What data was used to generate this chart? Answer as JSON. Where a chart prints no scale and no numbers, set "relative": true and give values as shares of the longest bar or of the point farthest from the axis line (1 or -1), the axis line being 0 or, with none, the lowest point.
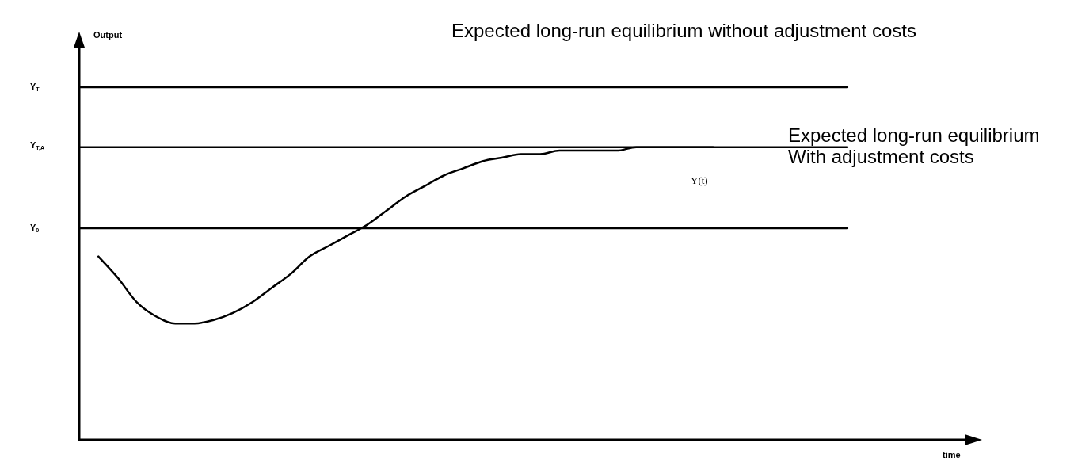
{
  "chart_data": {
    "type": "line",
    "relative": true,
    "legend": false,
    "marker": "none",
    "line_style": "solid",
    "categories": [
      null,
      null,
      null,
      null,
      null,
      null,
      null,
      null,
      null,
      null,
      null,
      null,
      null,
      null,
      null,
      null,
      null,
      null,
      null,
      null,
      null,
      null,
      null,
      null,
      null,
      null,
      null,
      null,
      null,
      null,
      null,
      null,
      null,
      null,
      null,
      null,
      null,
      null,
      null,
      null,
      null
    ],
    "series": [
      {
        "name": "Expected long-run equilibrium without adjustment costs",
        "color": "#000000",
        "values": [
          1,
          1,
          1,
          1,
          1,
          1,
          1,
          1,
          1,
          1,
          1,
          1,
          1,
          1,
          1,
          1,
          1,
          1,
          1,
          1,
          1,
          1,
          1,
          1,
          1,
          1,
          1,
          1,
          1,
          1,
          1,
          1,
          1,
          1,
          1,
          1,
          1,
          1,
          1,
          1,
          1
        ]
      },
      {
        "name": "Expected long-run equilibrium\nWith adjustment costs",
        "color": "#000000",
        "values": [
          0.83,
          0.83,
          0.83,
          0.83,
          0.83,
          0.83,
          0.83,
          0.83,
          0.83,
          0.83,
          0.83,
          0.83,
          0.83,
          0.83,
          0.83,
          0.83,
          0.83,
          0.83,
          0.83,
          0.83,
          0.83,
          0.83,
          0.83,
          0.83,
          0.83,
          0.83,
          0.83,
          0.83,
          0.83,
          0.83,
          0.83,
          0.83,
          0.83,
          0.83,
          0.83,
          0.83,
          0.83,
          0.83,
          0.83,
          0.83,
          0.83
        ]
      },
      {
        "color": "#000000",
        "values": [
          0.6,
          0.6,
          0.6,
          0.6,
          0.6,
          0.6,
          0.6,
          0.6,
          0.6,
          0.6,
          0.6,
          0.6,
          0.6,
          0.6,
          0.6,
          0.6,
          0.6,
          0.6,
          0.6,
          0.6,
          0.6,
          0.6,
          0.6,
          0.6,
          0.6,
          0.6,
          0.6,
          0.6,
          0.6,
          0.6,
          0.6,
          0.6,
          0.6,
          0.6,
          0.6,
          0.6,
          0.6,
          0.6,
          0.6,
          0.6,
          0.6
        ]
      },
      {
        "name": "Y(t)",
        "color": "#000000",
        "values": [
          null,
          0.52,
          0.46,
          0.39,
          0.35,
          0.33,
          0.33,
          0.34,
          0.36,
          0.39,
          0.43,
          0.47,
          0.52,
          0.55,
          0.58,
          0.61,
          0.65,
          0.69,
          0.72,
          0.75,
          0.77,
          0.79,
          0.8,
          0.81,
          0.81,
          0.82,
          0.82,
          0.82,
          0.82,
          0.83,
          0.83,
          0.83,
          0.83,
          0.83,
          null,
          null,
          null,
          null,
          null,
          null,
          null
        ]
      }
    ],
    "annotations": [
      "Output",
      "Y$_{T}$",
      "Y$_{T,A}$",
      "Y$_{0}$",
      "time"
    ]
  }
}
